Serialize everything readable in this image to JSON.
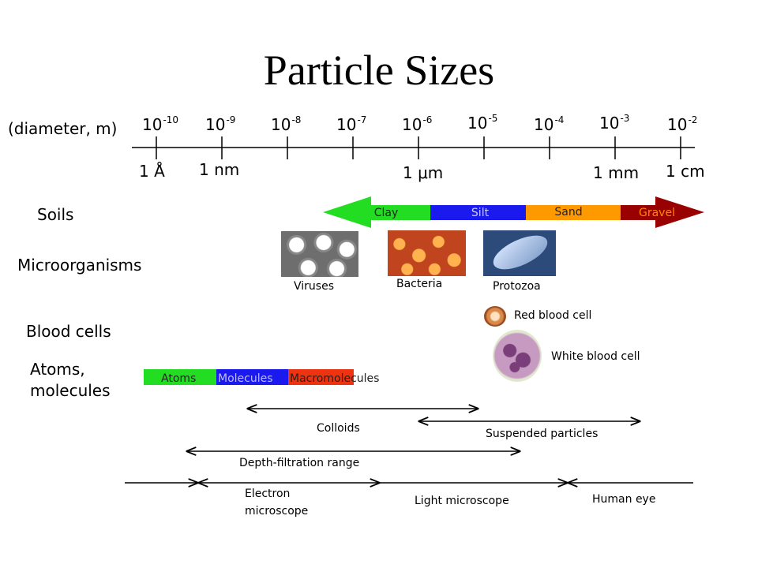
{
  "title": "Particle Sizes",
  "scale": {
    "axis_label": "(diameter, m)",
    "ticks": [
      {
        "base": "10",
        "exp": "-10"
      },
      {
        "base": "10",
        "exp": "-9"
      },
      {
        "base": "10",
        "exp": "-8"
      },
      {
        "base": "10",
        "exp": "-7"
      },
      {
        "base": "10",
        "exp": "-6"
      },
      {
        "base": "10",
        "exp": "-5"
      },
      {
        "base": "10",
        "exp": "-4"
      },
      {
        "base": "10",
        "exp": "-3"
      },
      {
        "base": "10",
        "exp": "-2"
      }
    ],
    "units": [
      "1 Å",
      "1 nm",
      "1 μm",
      "1 mm",
      "1 cm"
    ]
  },
  "rows": {
    "soils": "Soils",
    "microorganisms": "Microorganisms",
    "blood_cells": "Blood cells",
    "atoms_line1": "Atoms,",
    "atoms_line2": "molecules"
  },
  "soils_bands": [
    "Clay",
    "Silt",
    "Sand",
    "Gravel"
  ],
  "microbes": [
    "Viruses",
    "Bacteria",
    "Protozoa"
  ],
  "blood": [
    "Red blood cell",
    "White blood cell"
  ],
  "molecule_bands": [
    "Atoms",
    "Molecules",
    "Macromolecules"
  ],
  "ranges": {
    "colloids": "Colloids",
    "suspended": "Suspended particles",
    "depth_filtration": "Depth-filtration range",
    "electron_line1": "Electron",
    "electron_line2": "microscope",
    "light": "Light microscope",
    "eye": "Human eye"
  },
  "colors": {
    "clay": "#22dd22",
    "silt": "#1a1aee",
    "sand": "#ff9900",
    "gravel": "#990000",
    "atoms": "#22dd22",
    "molecules": "#1a1aee",
    "macromolecules": "#ee3311"
  }
}
